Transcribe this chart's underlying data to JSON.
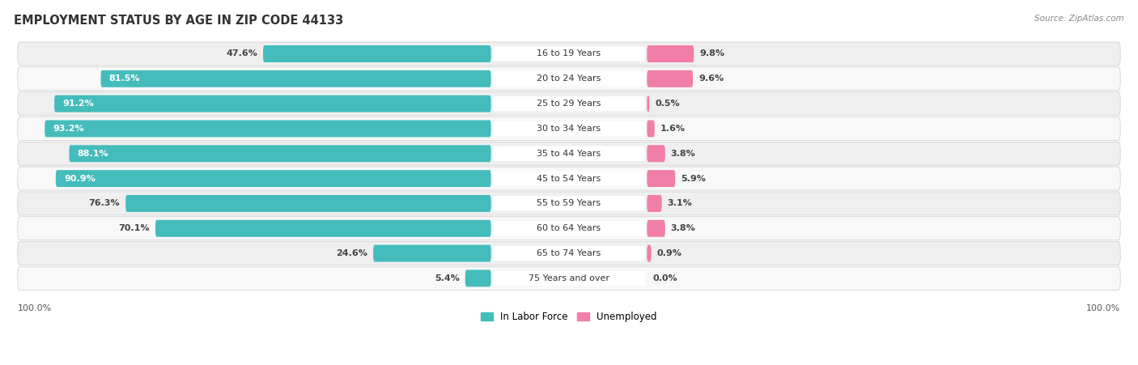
{
  "title": "EMPLOYMENT STATUS BY AGE IN ZIP CODE 44133",
  "source": "Source: ZipAtlas.com",
  "age_groups": [
    "16 to 19 Years",
    "20 to 24 Years",
    "25 to 29 Years",
    "30 to 34 Years",
    "35 to 44 Years",
    "45 to 54 Years",
    "55 to 59 Years",
    "60 to 64 Years",
    "65 to 74 Years",
    "75 Years and over"
  ],
  "in_labor_force": [
    47.6,
    81.5,
    91.2,
    93.2,
    88.1,
    90.9,
    76.3,
    70.1,
    24.6,
    5.4
  ],
  "unemployed": [
    9.8,
    9.6,
    0.5,
    1.6,
    3.8,
    5.9,
    3.1,
    3.8,
    0.9,
    0.0
  ],
  "labor_color": "#45BCBC",
  "unemployed_color": "#F07EA8",
  "row_bg_even": "#EFEFEF",
  "row_bg_odd": "#F8F8F8",
  "title_fontsize": 10.5,
  "source_fontsize": 7.5,
  "label_fontsize": 8,
  "value_fontsize": 8,
  "legend_labor": "In Labor Force",
  "legend_unemployed": "Unemployed"
}
